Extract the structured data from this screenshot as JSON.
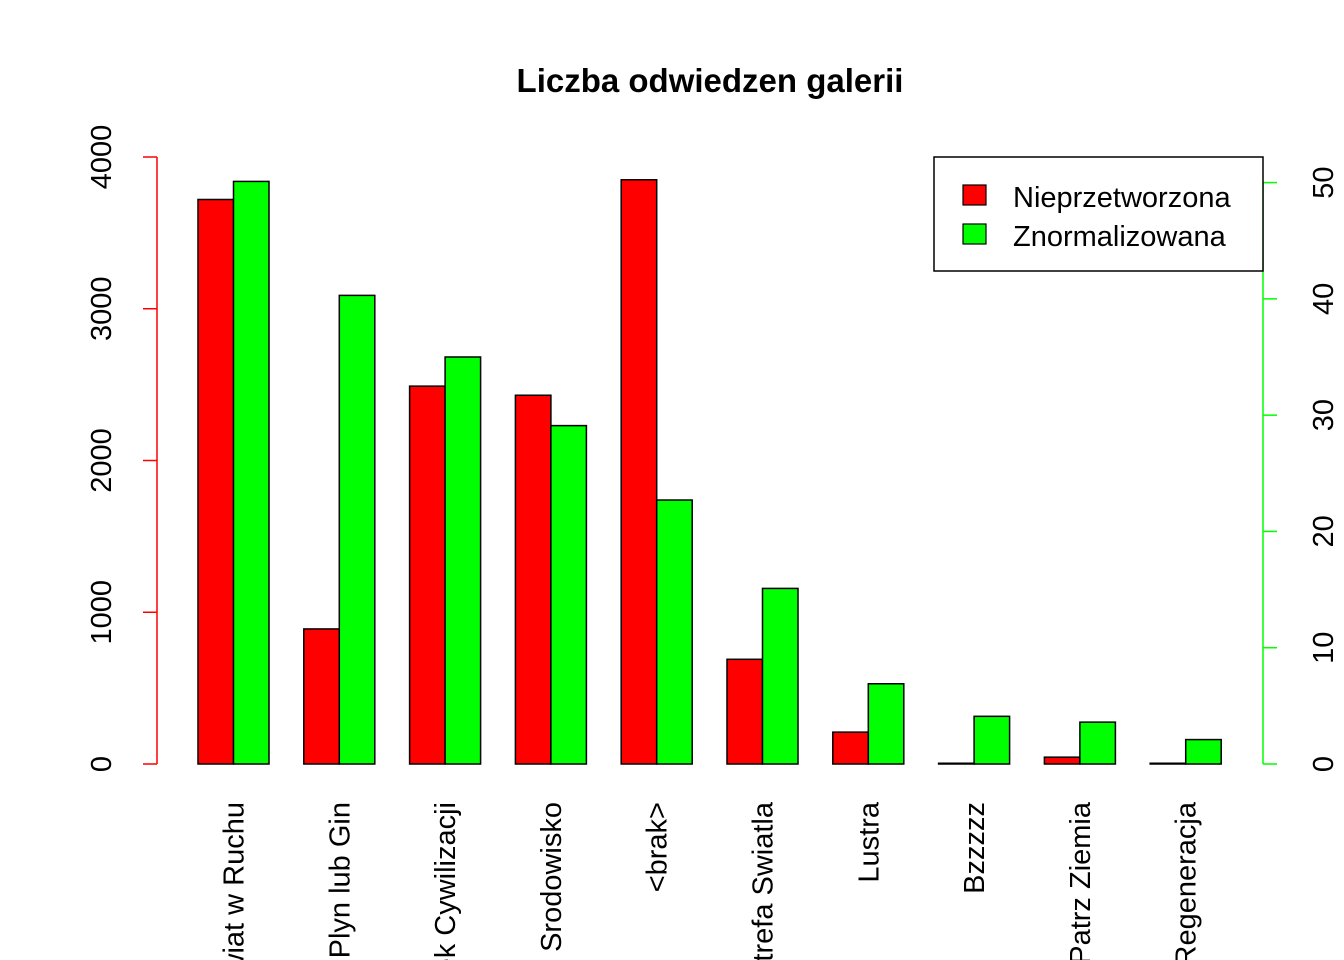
{
  "chart_data": {
    "type": "bar",
    "title": "Liczba odwiedzen galerii",
    "xlabel": "",
    "ylabel": "",
    "categories": [
      "Swiat w Ruchu",
      "Plyn lub Gin",
      "Wiek Cywilizacji",
      "Srodowisko",
      "<brak>",
      "Strefa Swiatla",
      "Lustra",
      "Bzzzzz",
      "Patrz Ziemia",
      "Regeneracja"
    ],
    "left_axis": {
      "ticks": [
        "0",
        "1000",
        "2000",
        "3000",
        "4000"
      ],
      "ylim": [
        0,
        4000
      ],
      "color": "#ff0000"
    },
    "right_axis": {
      "ticks": [
        "0",
        "10",
        "20",
        "30",
        "40",
        "50"
      ],
      "ylim": [
        0,
        52.2
      ],
      "color": "#00ff00"
    },
    "series": [
      {
        "name": "Nieprzetworzona",
        "axis": "left",
        "color": "#ff0000",
        "values": [
          3720,
          890,
          2490,
          2430,
          3850,
          690,
          210,
          5,
          45,
          5
        ]
      },
      {
        "name": "Znormalizowana",
        "axis": "right",
        "color": "#00ff00",
        "values": [
          50.1,
          40.3,
          35.0,
          29.1,
          22.7,
          15.1,
          6.9,
          4.1,
          3.6,
          2.1
        ]
      }
    ],
    "legend": {
      "position": "top-right"
    },
    "grid": false
  }
}
